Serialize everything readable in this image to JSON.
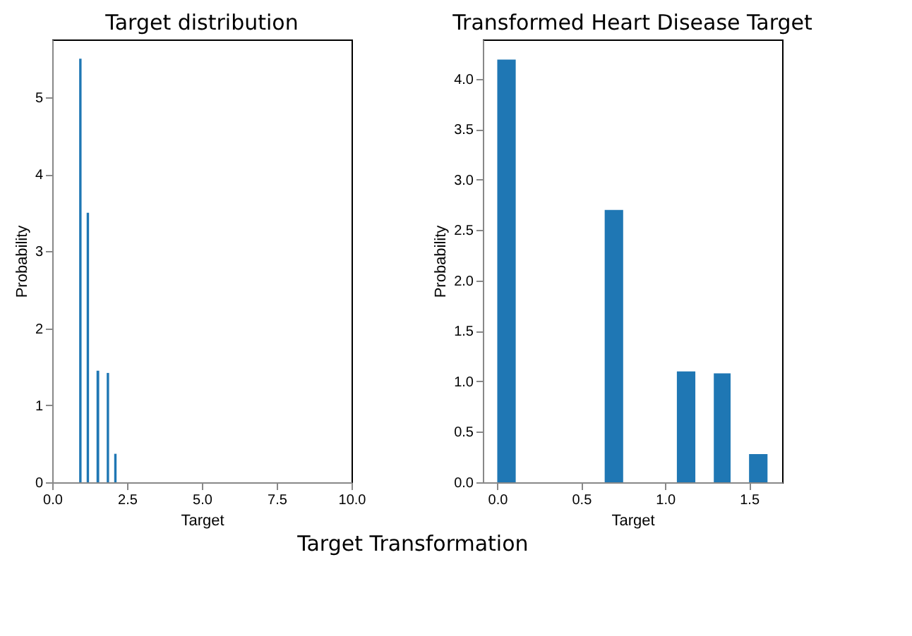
{
  "chart_data": [
    {
      "type": "histogram",
      "title": "Target distribution",
      "xlabel": "Target",
      "ylabel": "Probability",
      "color": "#1f77b4",
      "grid": false,
      "bins": [
        0.9,
        0.98,
        1.15,
        1.23,
        1.48,
        1.57,
        1.82,
        1.9,
        2.07,
        2.15
      ],
      "values": [
        5.5,
        0,
        3.5,
        0,
        1.45,
        0,
        1.42,
        0,
        0.37
      ],
      "xlim": [
        0,
        10
      ],
      "xticks": [
        {
          "value": 0,
          "label": "0.0"
        },
        {
          "value": 2.5,
          "label": "2.5"
        },
        {
          "value": 5,
          "label": "5.0"
        },
        {
          "value": 7.5,
          "label": "7.5"
        },
        {
          "value": 10,
          "label": "10.0"
        }
      ],
      "ylim": [
        0,
        5.75
      ],
      "yticks": [
        0,
        1,
        2,
        3,
        4,
        5
      ],
      "annotations": [
        "Target Transformation"
      ]
    },
    {
      "type": "histogram",
      "title": "Transformed Heart Disease Target",
      "xlabel": "Target",
      "ylabel": "Probability",
      "color": "#1f77b4",
      "grid": false,
      "bins": [
        0,
        0.11,
        0.64,
        0.75,
        1.07,
        1.18,
        1.29,
        1.39,
        1.5,
        1.61
      ],
      "values": [
        4.19,
        0,
        2.7,
        0,
        1.1,
        0,
        1.08,
        0,
        0.28
      ],
      "xlim": [
        -0.086,
        1.697
      ],
      "xticks": [
        {
          "value": 0,
          "label": "0.0"
        },
        {
          "value": 0.5,
          "label": "0.5"
        },
        {
          "value": 1,
          "label": "1.0"
        },
        {
          "value": 1.5,
          "label": "1.5"
        }
      ],
      "ylim": [
        0,
        4.39
      ],
      "yticks": [
        {
          "value": 0,
          "label": "0.0"
        },
        {
          "value": 0.5,
          "label": "0.5"
        },
        {
          "value": 1,
          "label": "1.0"
        },
        {
          "value": 1.5,
          "label": "1.5"
        },
        {
          "value": 2,
          "label": "2.0"
        },
        {
          "value": 2.5,
          "label": "2.5"
        },
        {
          "value": 3,
          "label": "3.0"
        },
        {
          "value": 3.5,
          "label": "3.5"
        },
        {
          "value": 4,
          "label": "4.0"
        }
      ]
    }
  ]
}
